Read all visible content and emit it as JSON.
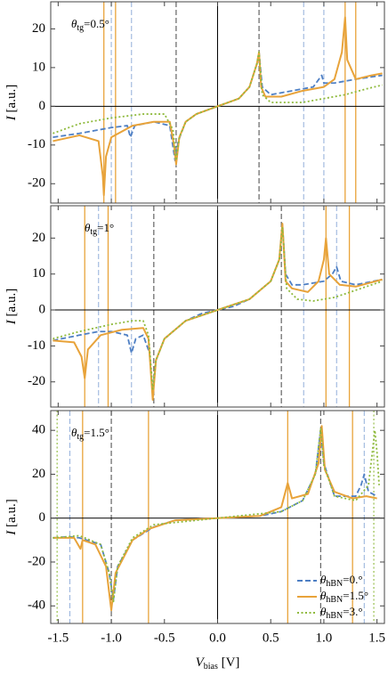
{
  "chart_data": [
    {
      "type": "line",
      "annotation": "θtg=0.5°",
      "y_label": "I [a.u.]",
      "xlim": [
        -1.57,
        1.57
      ],
      "ylim": [
        -25,
        27
      ],
      "yticks": [
        -20,
        -10,
        0,
        10,
        20
      ],
      "vlines": [
        {
          "x": -1.07,
          "color": "#e8a33a",
          "style": "solid"
        },
        {
          "x": -0.96,
          "color": "#e8a33a",
          "style": "solid"
        },
        {
          "x": 1.2,
          "color": "#e8a33a",
          "style": "solid"
        },
        {
          "x": 1.3,
          "color": "#e8a33a",
          "style": "solid"
        },
        {
          "x": -1.0,
          "color": "#9bb5dd",
          "style": "dashed"
        },
        {
          "x": -0.81,
          "color": "#9bb5dd",
          "style": "dashed"
        },
        {
          "x": 0.81,
          "color": "#9bb5dd",
          "style": "dashed"
        },
        {
          "x": 1.0,
          "color": "#9bb5dd",
          "style": "dashed"
        },
        {
          "x": -0.39,
          "color": "#555555",
          "style": "dashed"
        },
        {
          "x": 0.39,
          "color": "#555555",
          "style": "dashed"
        }
      ],
      "series": [
        {
          "color": "#4e7fc4",
          "style": "dashed",
          "x": [
            -1.55,
            -1.3,
            -1.0,
            -0.85,
            -0.82,
            -0.78,
            -0.6,
            -0.45,
            -0.4,
            -0.37,
            -0.3,
            -0.2,
            0,
            0.2,
            0.3,
            0.37,
            0.39,
            0.42,
            0.5,
            0.7,
            0.9,
            0.98,
            1.0,
            1.1,
            1.3,
            1.55
          ],
          "values": [
            -8,
            -7,
            -5.5,
            -5,
            -8,
            -5,
            -4,
            -5,
            -14,
            -9,
            -4,
            -2,
            0,
            2,
            5,
            11,
            14,
            5,
            3,
            4,
            5,
            8,
            6,
            6,
            7,
            8
          ]
        },
        {
          "color": "#e8a33a",
          "style": "solid",
          "x": [
            -1.55,
            -1.3,
            -1.12,
            -1.08,
            -1.07,
            -1.05,
            -1.0,
            -0.8,
            -0.6,
            -0.45,
            -0.41,
            -0.39,
            -0.36,
            -0.3,
            -0.2,
            0,
            0.2,
            0.3,
            0.37,
            0.39,
            0.41,
            0.45,
            0.6,
            0.8,
            1.0,
            1.1,
            1.17,
            1.2,
            1.22,
            1.3,
            1.45,
            1.55
          ],
          "values": [
            -9,
            -7.5,
            -9,
            -18,
            -23,
            -13,
            -8,
            -5,
            -4,
            -4,
            -10,
            -15,
            -8,
            -4,
            -2,
            0,
            2,
            5,
            11,
            14,
            5,
            2.5,
            2.5,
            4,
            5,
            7,
            14,
            23,
            12,
            7,
            8,
            8.5
          ]
        },
        {
          "color": "#8fba3d",
          "style": "dotted",
          "x": [
            -1.55,
            -1.3,
            -1.0,
            -0.7,
            -0.5,
            -0.42,
            -0.39,
            -0.36,
            -0.3,
            -0.2,
            0,
            0.2,
            0.3,
            0.37,
            0.39,
            0.42,
            0.5,
            0.8,
            1.0,
            1.2,
            1.4,
            1.55
          ],
          "values": [
            -7,
            -4.5,
            -3,
            -2,
            -2,
            -6,
            -14,
            -8,
            -4,
            -2,
            0,
            2,
            5,
            11,
            14,
            3,
            1,
            1,
            2,
            3,
            4.5,
            5.5
          ]
        }
      ]
    },
    {
      "type": "line",
      "annotation": "θtg=1°",
      "y_label": "I [a.u.]",
      "xlim": [
        -1.57,
        1.57
      ],
      "ylim": [
        -27,
        29
      ],
      "yticks": [
        -20,
        -10,
        0,
        10,
        20
      ],
      "vlines": [
        {
          "x": -1.25,
          "color": "#e8a33a",
          "style": "solid"
        },
        {
          "x": -1.03,
          "color": "#e8a33a",
          "style": "solid"
        },
        {
          "x": 1.02,
          "color": "#e8a33a",
          "style": "solid"
        },
        {
          "x": 1.24,
          "color": "#e8a33a",
          "style": "solid"
        },
        {
          "x": -1.12,
          "color": "#9bb5dd",
          "style": "dashed"
        },
        {
          "x": -0.81,
          "color": "#9bb5dd",
          "style": "dashed"
        },
        {
          "x": 0.81,
          "color": "#9bb5dd",
          "style": "dashed"
        },
        {
          "x": 1.12,
          "color": "#9bb5dd",
          "style": "dashed"
        },
        {
          "x": -0.6,
          "color": "#555555",
          "style": "dashed"
        },
        {
          "x": 0.6,
          "color": "#555555",
          "style": "dashed"
        }
      ],
      "series": [
        {
          "color": "#4e7fc4",
          "style": "dashed",
          "x": [
            -1.55,
            -1.3,
            -1.12,
            -1.0,
            -0.85,
            -0.81,
            -0.77,
            -0.7,
            -0.64,
            -0.61,
            -0.58,
            -0.5,
            -0.3,
            -0.15,
            0,
            0.15,
            0.3,
            0.5,
            0.58,
            0.61,
            0.64,
            0.7,
            0.8,
            1.0,
            1.08,
            1.12,
            1.16,
            1.3,
            1.55
          ],
          "values": [
            -8.5,
            -7,
            -6,
            -6,
            -7,
            -12,
            -8,
            -7,
            -12,
            -23,
            -14,
            -8,
            -3,
            -1,
            0,
            1,
            3,
            8,
            14,
            24,
            10,
            7,
            7,
            8,
            10,
            12,
            8,
            7,
            8.5
          ]
        },
        {
          "color": "#e8a33a",
          "style": "solid",
          "x": [
            -1.55,
            -1.35,
            -1.28,
            -1.25,
            -1.22,
            -1.1,
            -0.9,
            -0.7,
            -0.65,
            -0.61,
            -0.58,
            -0.5,
            -0.3,
            0,
            0.3,
            0.5,
            0.58,
            0.61,
            0.64,
            0.7,
            0.85,
            0.95,
            1.0,
            1.02,
            1.05,
            1.15,
            1.3,
            1.55
          ],
          "values": [
            -8.5,
            -9,
            -13,
            -19,
            -11,
            -7,
            -5.5,
            -5,
            -8,
            -25,
            -14,
            -8,
            -3,
            0,
            3,
            8,
            14,
            24,
            8,
            6,
            5,
            8,
            14,
            20,
            10,
            7,
            6.5,
            8.5
          ]
        },
        {
          "color": "#8fba3d",
          "style": "dotted",
          "x": [
            -1.55,
            -1.3,
            -1.0,
            -0.8,
            -0.7,
            -0.65,
            -0.61,
            -0.58,
            -0.5,
            -0.3,
            0,
            0.3,
            0.5,
            0.58,
            0.61,
            0.65,
            0.75,
            0.9,
            1.1,
            1.3,
            1.55
          ],
          "values": [
            -8,
            -6,
            -4,
            -3,
            -3,
            -7,
            -22,
            -14,
            -8,
            -3,
            0,
            3,
            8,
            14,
            23,
            6,
            3,
            2.5,
            3.5,
            5.5,
            8
          ]
        }
      ]
    },
    {
      "type": "line",
      "annotation": "θtg=1.5°",
      "y_label": "I [a.u.]",
      "x_label": "Vbias [V]",
      "xlim": [
        -1.57,
        1.57
      ],
      "ylim": [
        -48,
        49
      ],
      "yticks": [
        -40,
        -20,
        0,
        20,
        40
      ],
      "xticks": [
        -1.5,
        {
          "value": -1,
          "label": "-1.0"
        },
        -0.5,
        {
          "value": 0,
          "label": "0.0"
        },
        0.5,
        {
          "value": 1,
          "label": "1.0"
        },
        1.5
      ],
      "legend": "lower right",
      "vlines": [
        {
          "x": -1.27,
          "color": "#e8a33a",
          "style": "solid"
        },
        {
          "x": -0.65,
          "color": "#e8a33a",
          "style": "solid"
        },
        {
          "x": 0.66,
          "color": "#e8a33a",
          "style": "solid"
        },
        {
          "x": 1.27,
          "color": "#e8a33a",
          "style": "solid"
        },
        {
          "x": -1.39,
          "color": "#9bb5dd",
          "style": "dashed"
        },
        {
          "x": 1.38,
          "color": "#9bb5dd",
          "style": "dashed"
        },
        {
          "x": -1.0,
          "color": "#555555",
          "style": "dashed"
        },
        {
          "x": 0.97,
          "color": "#555555",
          "style": "dashed"
        },
        {
          "x": -1.51,
          "color": "#8fba3d",
          "style": "dotted"
        },
        {
          "x": 1.47,
          "color": "#8fba3d",
          "style": "dotted"
        }
      ],
      "series": [
        {
          "name": "θhBN=0.°",
          "color": "#4e7fc4",
          "style": "dashed",
          "x": [
            -1.55,
            -1.4,
            -1.3,
            -1.1,
            -1.02,
            -0.98,
            -0.94,
            -0.8,
            -0.6,
            -0.4,
            0,
            0.4,
            0.6,
            0.8,
            0.92,
            0.97,
            1.0,
            1.1,
            1.3,
            1.35,
            1.38,
            1.42,
            1.5
          ],
          "values": [
            -9,
            -8.5,
            -9,
            -12,
            -25,
            -37,
            -22,
            -10,
            -4,
            -1,
            0,
            1,
            3,
            8,
            20,
            40,
            25,
            10,
            10,
            15,
            20,
            12,
            10
          ]
        },
        {
          "name": "θhBN=1.5°",
          "color": "#e8a33a",
          "style": "solid",
          "x": [
            -1.55,
            -1.35,
            -1.29,
            -1.27,
            -1.15,
            -1.05,
            -1.0,
            -0.96,
            -0.8,
            -0.65,
            -0.4,
            0,
            0.4,
            0.6,
            0.66,
            0.7,
            0.85,
            0.95,
            0.98,
            1.01,
            1.1,
            1.27,
            1.4,
            1.5
          ],
          "values": [
            -9,
            -9,
            -14,
            -10,
            -12,
            -22,
            -42,
            -25,
            -10,
            -5,
            -1,
            0,
            1,
            5,
            16,
            9,
            11,
            25,
            42,
            22,
            12,
            9,
            10,
            9
          ]
        },
        {
          "name": "θhBN=3.°",
          "color": "#8fba3d",
          "style": "dotted",
          "x": [
            -1.55,
            -1.3,
            -1.1,
            -1.02,
            -0.98,
            -0.94,
            -0.8,
            -0.6,
            0,
            0.6,
            0.8,
            0.92,
            0.97,
            1.0,
            1.1,
            1.3,
            1.42,
            1.48,
            1.5,
            1.52
          ],
          "values": [
            -9,
            -8,
            -12,
            -25,
            -38,
            -22,
            -9,
            -3,
            0,
            3,
            8,
            20,
            41,
            24,
            10,
            8,
            15,
            40,
            30,
            15
          ]
        }
      ]
    }
  ]
}
